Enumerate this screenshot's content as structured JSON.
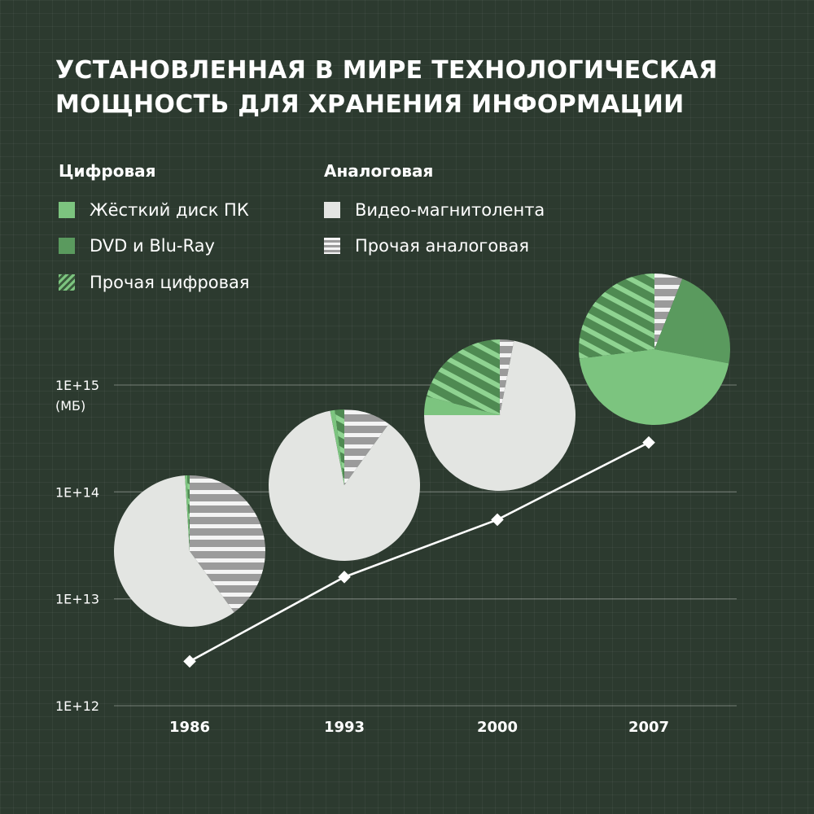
{
  "title": {
    "line1": "УСТАНОВЛЕННАЯ В МИРЕ ТЕХНОЛОГИЧЕСКАЯ",
    "line2": "МОЩНОСТЬ ДЛЯ ХРАНЕНИЯ ИНФОРМАЦИИ"
  },
  "legend": {
    "digital_header": "Цифровая",
    "analog_header": "Аналоговая",
    "hdd": "Жёсткий диск ПК",
    "dvd": "DVD и Blu-Ray",
    "other_digital": "Прочая цифровая",
    "video": "Видео-магнитолента",
    "other_analog": "Прочая аналоговая"
  },
  "colors": {
    "background": "#2c3a2f",
    "hdd": "#7cc47f",
    "dvd": "#5a9a5e",
    "other_digital": "#7cc47f",
    "video": "#e3e5e2",
    "other_analog": "#9b9b9b",
    "line": "#ffffff"
  },
  "chart_data": {
    "type": "line",
    "title": "УСТАНОВЛЕННАЯ В МИРЕ ТЕХНОЛОГИЧЕСКАЯ МОЩНОСТЬ ДЛЯ ХРАНЕНИЯ ИНФОРМАЦИИ",
    "y_scale": "log",
    "ylabel": "(МБ)",
    "y_ticks": [
      "1E+12",
      "1E+13",
      "1E+14",
      "1E+15"
    ],
    "ylim": [
      1000000000000.0,
      1000000000000000.0
    ],
    "categories": [
      "1986",
      "1993",
      "2000",
      "2007"
    ],
    "values": [
      2600000000000.0,
      16000000000000.0,
      55000000000000.0,
      290000000000000.0
    ],
    "pies": [
      {
        "year": "1986",
        "slices": [
          {
            "name": "Жёсткий диск ПК",
            "share": 0.005
          },
          {
            "name": "DVD и Blu-Ray",
            "share": 0.0
          },
          {
            "name": "Прочая цифровая",
            "share": 0.005
          },
          {
            "name": "Видео-магнитолента",
            "share": 0.59
          },
          {
            "name": "Прочая аналоговая",
            "share": 0.4
          }
        ]
      },
      {
        "year": "1993",
        "slices": [
          {
            "name": "Жёсткий диск ПК",
            "share": 0.01
          },
          {
            "name": "DVD и Blu-Ray",
            "share": 0.0
          },
          {
            "name": "Прочая цифровая",
            "share": 0.02
          },
          {
            "name": "Видео-магнитолента",
            "share": 0.87
          },
          {
            "name": "Прочая аналоговая",
            "share": 0.1
          }
        ]
      },
      {
        "year": "2000",
        "slices": [
          {
            "name": "Жёсткий диск ПК",
            "share": 0.04
          },
          {
            "name": "DVD и Blu-Ray",
            "share": 0.0
          },
          {
            "name": "Прочая цифровая",
            "share": 0.21
          },
          {
            "name": "Видео-магнитолента",
            "share": 0.72
          },
          {
            "name": "Прочая аналоговая",
            "share": 0.03
          }
        ]
      },
      {
        "year": "2007",
        "slices": [
          {
            "name": "Жёсткий диск ПК",
            "share": 0.45
          },
          {
            "name": "DVD и Blu-Ray",
            "share": 0.22
          },
          {
            "name": "Прочая цифровая",
            "share": 0.27
          },
          {
            "name": "Видео-магнитолента",
            "share": 0.0
          },
          {
            "name": "Прочая аналоговая",
            "share": 0.06
          }
        ]
      }
    ],
    "grid": true
  }
}
